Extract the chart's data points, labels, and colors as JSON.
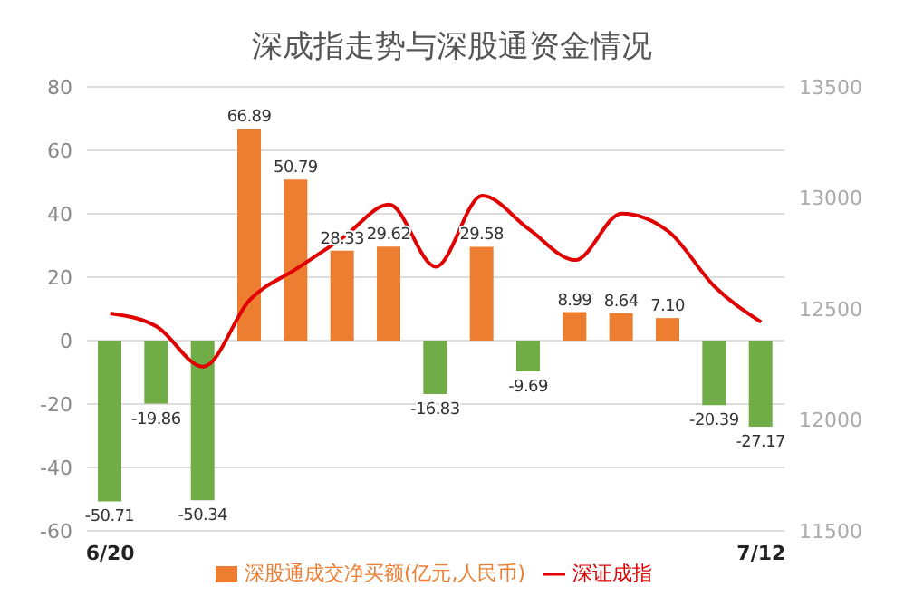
{
  "chart_data": {
    "type": "bar",
    "title": "深成指走势与深股通资金情况",
    "categories": [
      "6/20",
      null,
      null,
      null,
      null,
      null,
      null,
      null,
      null,
      null,
      null,
      null,
      null,
      null,
      "7/12"
    ],
    "series": [
      {
        "name": "深股通成交净买额(亿元,人民币)",
        "value_labels": [
          "-50.71",
          "-19.86",
          "-50.34",
          "66.89",
          "50.79",
          "28.33",
          "29.62",
          "-16.83",
          "29.58",
          "-9.69",
          "8.99",
          "8.64",
          "7.10",
          "-20.39",
          "-27.17"
        ],
        "color": "#ed7d31",
        "colors": [
          "#70ad47",
          "#70ad47",
          "#70ad47",
          "#ed7d31",
          "#ed7d31",
          "#ed7d31",
          "#ed7d31",
          "#70ad47",
          "#ed7d31",
          "#70ad47",
          "#ed7d31",
          "#ed7d31",
          "#ed7d31",
          "#70ad47",
          "#70ad47"
        ],
        "values": [
          -50.71,
          -19.86,
          -50.34,
          66.89,
          50.79,
          28.33,
          29.62,
          -16.83,
          29.58,
          -9.69,
          8.99,
          8.64,
          7.1,
          -20.39,
          -27.17
        ]
      },
      {
        "name": "深证成指",
        "type": "line",
        "axis": "y2",
        "color": "#e00000",
        "values": [
          12480,
          12420,
          12240,
          12540,
          12680,
          12820,
          12970,
          12690,
          13010,
          12860,
          12720,
          12930,
          12850,
          12600,
          12440
        ]
      }
    ],
    "ylim": [
      -60,
      80
    ],
    "yticks": [
      -60,
      -40,
      -20,
      0,
      20,
      40,
      60,
      80
    ],
    "y2lim": [
      11500,
      13500
    ],
    "y2ticks": [
      11500,
      12000,
      12500,
      13000,
      13500
    ],
    "grid": "y",
    "legend": "bottom",
    "marker": "none"
  }
}
